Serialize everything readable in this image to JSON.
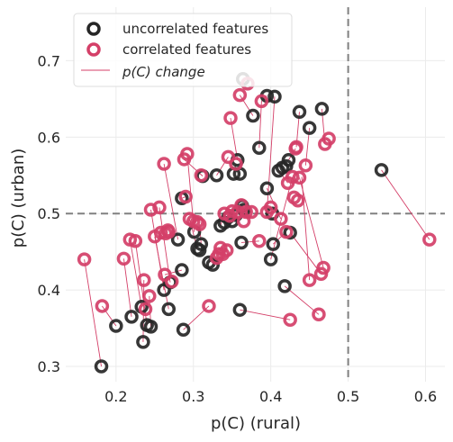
{
  "chart_data": {
    "type": "scatter",
    "xlabel": "p(C) (rural)",
    "ylabel": "p(C) (urban)",
    "xlim": [
      0.135,
      0.625
    ],
    "ylim": [
      0.28,
      0.77
    ],
    "xticks": [
      0.2,
      0.3,
      0.4,
      0.5,
      0.6
    ],
    "yticks": [
      0.3,
      0.4,
      0.5,
      0.6,
      0.7
    ],
    "xtick_labels": [
      "0.2",
      "0.3",
      "0.4",
      "0.5",
      "0.6"
    ],
    "ytick_labels": [
      "0.3",
      "0.4",
      "0.5",
      "0.6",
      "0.7"
    ],
    "grid": true,
    "reference_lines": {
      "x": 0.5,
      "y": 0.5,
      "style": "dashed",
      "color": "#808080"
    },
    "legend": {
      "position": "top-left",
      "entries": [
        {
          "label": "uncorrelated features",
          "marker": "ring",
          "color": "#262626"
        },
        {
          "label": "correlated features",
          "marker": "ring",
          "color": "#d43f68"
        },
        {
          "label": "p(C) change",
          "marker": "line",
          "color": "#d43f68"
        }
      ]
    },
    "colors": {
      "uncorrelated": "#262626",
      "correlated": "#d43f68",
      "change_line": "#d43f68"
    },
    "series": [
      {
        "name": "uncorrelated features",
        "points": [
          [
            0.181,
            0.3
          ],
          [
            0.2,
            0.353
          ],
          [
            0.22,
            0.365
          ],
          [
            0.235,
            0.332
          ],
          [
            0.233,
            0.378
          ],
          [
            0.24,
            0.354
          ],
          [
            0.245,
            0.352
          ],
          [
            0.262,
            0.4
          ],
          [
            0.268,
            0.375
          ],
          [
            0.27,
            0.41
          ],
          [
            0.28,
            0.466
          ],
          [
            0.285,
            0.426
          ],
          [
            0.287,
            0.348
          ],
          [
            0.285,
            0.52
          ],
          [
            0.301,
            0.476
          ],
          [
            0.305,
            0.454
          ],
          [
            0.308,
            0.452
          ],
          [
            0.31,
            0.46
          ],
          [
            0.312,
            0.549
          ],
          [
            0.32,
            0.436
          ],
          [
            0.325,
            0.433
          ],
          [
            0.33,
            0.55
          ],
          [
            0.335,
            0.484
          ],
          [
            0.34,
            0.488
          ],
          [
            0.345,
            0.495
          ],
          [
            0.35,
            0.49
          ],
          [
            0.352,
            0.552
          ],
          [
            0.355,
            0.498
          ],
          [
            0.357,
            0.57
          ],
          [
            0.36,
            0.552
          ],
          [
            0.36,
            0.374
          ],
          [
            0.362,
            0.462
          ],
          [
            0.363,
            0.51
          ],
          [
            0.364,
            0.676
          ],
          [
            0.365,
            0.505
          ],
          [
            0.377,
            0.628
          ],
          [
            0.385,
            0.586
          ],
          [
            0.395,
            0.654
          ],
          [
            0.395,
            0.533
          ],
          [
            0.4,
            0.44
          ],
          [
            0.402,
            0.5
          ],
          [
            0.403,
            0.46
          ],
          [
            0.405,
            0.653
          ],
          [
            0.41,
            0.556
          ],
          [
            0.415,
            0.56
          ],
          [
            0.418,
            0.405
          ],
          [
            0.42,
            0.562
          ],
          [
            0.423,
            0.57
          ],
          [
            0.425,
            0.475
          ],
          [
            0.437,
            0.633
          ],
          [
            0.45,
            0.612
          ],
          [
            0.466,
            0.637
          ],
          [
            0.543,
            0.557
          ]
        ]
      },
      {
        "name": "correlated features",
        "points": [
          [
            0.159,
            0.44
          ],
          [
            0.182,
            0.379
          ],
          [
            0.21,
            0.441
          ],
          [
            0.218,
            0.466
          ],
          [
            0.225,
            0.464
          ],
          [
            0.236,
            0.413
          ],
          [
            0.238,
            0.375
          ],
          [
            0.243,
            0.392
          ],
          [
            0.245,
            0.505
          ],
          [
            0.25,
            0.47
          ],
          [
            0.256,
            0.508
          ],
          [
            0.258,
            0.475
          ],
          [
            0.262,
            0.565
          ],
          [
            0.263,
            0.42
          ],
          [
            0.264,
            0.474
          ],
          [
            0.267,
            0.478
          ],
          [
            0.268,
            0.476
          ],
          [
            0.272,
            0.411
          ],
          [
            0.288,
            0.571
          ],
          [
            0.29,
            0.522
          ],
          [
            0.292,
            0.578
          ],
          [
            0.295,
            0.493
          ],
          [
            0.3,
            0.49
          ],
          [
            0.305,
            0.489
          ],
          [
            0.308,
            0.486
          ],
          [
            0.31,
            0.55
          ],
          [
            0.32,
            0.379
          ],
          [
            0.33,
            0.442
          ],
          [
            0.333,
            0.447
          ],
          [
            0.335,
            0.455
          ],
          [
            0.338,
            0.447
          ],
          [
            0.34,
            0.5
          ],
          [
            0.343,
            0.452
          ],
          [
            0.345,
            0.574
          ],
          [
            0.347,
            0.497
          ],
          [
            0.348,
            0.625
          ],
          [
            0.35,
            0.503
          ],
          [
            0.355,
            0.565
          ],
          [
            0.357,
            0.502
          ],
          [
            0.36,
            0.655
          ],
          [
            0.362,
            0.511
          ],
          [
            0.365,
            0.49
          ],
          [
            0.368,
            0.502
          ],
          [
            0.37,
            0.67
          ],
          [
            0.375,
            0.502
          ],
          [
            0.385,
            0.464
          ],
          [
            0.388,
            0.647
          ],
          [
            0.395,
            0.502
          ],
          [
            0.4,
            0.508
          ],
          [
            0.413,
            0.493
          ],
          [
            0.42,
            0.476
          ],
          [
            0.422,
            0.54
          ],
          [
            0.425,
            0.361
          ],
          [
            0.428,
            0.548
          ],
          [
            0.43,
            0.521
          ],
          [
            0.432,
            0.585
          ],
          [
            0.433,
            0.587
          ],
          [
            0.435,
            0.517
          ],
          [
            0.437,
            0.547
          ],
          [
            0.445,
            0.563
          ],
          [
            0.45,
            0.413
          ],
          [
            0.462,
            0.368
          ],
          [
            0.465,
            0.421
          ],
          [
            0.468,
            0.429
          ],
          [
            0.47,
            0.591
          ],
          [
            0.475,
            0.598
          ],
          [
            0.605,
            0.466
          ]
        ]
      }
    ],
    "change_lines": [
      [
        [
          0.181,
          0.3
        ],
        [
          0.159,
          0.44
        ]
      ],
      [
        [
          0.2,
          0.353
        ],
        [
          0.182,
          0.379
        ]
      ],
      [
        [
          0.22,
          0.365
        ],
        [
          0.21,
          0.441
        ]
      ],
      [
        [
          0.235,
          0.332
        ],
        [
          0.236,
          0.413
        ]
      ],
      [
        [
          0.233,
          0.378
        ],
        [
          0.218,
          0.466
        ]
      ],
      [
        [
          0.24,
          0.354
        ],
        [
          0.225,
          0.464
        ]
      ],
      [
        [
          0.245,
          0.352
        ],
        [
          0.243,
          0.392
        ]
      ],
      [
        [
          0.262,
          0.4
        ],
        [
          0.245,
          0.505
        ]
      ],
      [
        [
          0.268,
          0.375
        ],
        [
          0.25,
          0.47
        ]
      ],
      [
        [
          0.27,
          0.41
        ],
        [
          0.256,
          0.508
        ]
      ],
      [
        [
          0.28,
          0.466
        ],
        [
          0.262,
          0.565
        ]
      ],
      [
        [
          0.285,
          0.426
        ],
        [
          0.263,
          0.42
        ]
      ],
      [
        [
          0.287,
          0.348
        ],
        [
          0.32,
          0.379
        ]
      ],
      [
        [
          0.285,
          0.52
        ],
        [
          0.29,
          0.522
        ]
      ],
      [
        [
          0.301,
          0.476
        ],
        [
          0.292,
          0.578
        ]
      ],
      [
        [
          0.305,
          0.454
        ],
        [
          0.295,
          0.493
        ]
      ],
      [
        [
          0.31,
          0.46
        ],
        [
          0.308,
          0.486
        ]
      ],
      [
        [
          0.312,
          0.549
        ],
        [
          0.288,
          0.571
        ]
      ],
      [
        [
          0.32,
          0.436
        ],
        [
          0.33,
          0.442
        ]
      ],
      [
        [
          0.325,
          0.433
        ],
        [
          0.338,
          0.447
        ]
      ],
      [
        [
          0.33,
          0.55
        ],
        [
          0.345,
          0.574
        ]
      ],
      [
        [
          0.335,
          0.484
        ],
        [
          0.34,
          0.5
        ]
      ],
      [
        [
          0.34,
          0.488
        ],
        [
          0.347,
          0.497
        ]
      ],
      [
        [
          0.352,
          0.552
        ],
        [
          0.355,
          0.565
        ]
      ],
      [
        [
          0.357,
          0.57
        ],
        [
          0.348,
          0.625
        ]
      ],
      [
        [
          0.36,
          0.374
        ],
        [
          0.425,
          0.361
        ]
      ],
      [
        [
          0.362,
          0.462
        ],
        [
          0.385,
          0.464
        ]
      ],
      [
        [
          0.364,
          0.676
        ],
        [
          0.37,
          0.67
        ]
      ],
      [
        [
          0.363,
          0.51
        ],
        [
          0.368,
          0.502
        ]
      ],
      [
        [
          0.365,
          0.505
        ],
        [
          0.375,
          0.502
        ]
      ],
      [
        [
          0.377,
          0.628
        ],
        [
          0.36,
          0.655
        ]
      ],
      [
        [
          0.385,
          0.586
        ],
        [
          0.388,
          0.647
        ]
      ],
      [
        [
          0.395,
          0.654
        ],
        [
          0.388,
          0.647
        ]
      ],
      [
        [
          0.395,
          0.533
        ],
        [
          0.413,
          0.493
        ]
      ],
      [
        [
          0.4,
          0.44
        ],
        [
          0.428,
          0.548
        ]
      ],
      [
        [
          0.403,
          0.46
        ],
        [
          0.42,
          0.476
        ]
      ],
      [
        [
          0.405,
          0.653
        ],
        [
          0.395,
          0.502
        ]
      ],
      [
        [
          0.41,
          0.556
        ],
        [
          0.422,
          0.54
        ]
      ],
      [
        [
          0.418,
          0.405
        ],
        [
          0.462,
          0.368
        ]
      ],
      [
        [
          0.423,
          0.57
        ],
        [
          0.432,
          0.585
        ]
      ],
      [
        [
          0.425,
          0.475
        ],
        [
          0.465,
          0.421
        ]
      ],
      [
        [
          0.437,
          0.633
        ],
        [
          0.433,
          0.587
        ]
      ],
      [
        [
          0.45,
          0.612
        ],
        [
          0.445,
          0.563
        ]
      ],
      [
        [
          0.466,
          0.637
        ],
        [
          0.47,
          0.591
        ]
      ],
      [
        [
          0.543,
          0.557
        ],
        [
          0.605,
          0.466
        ]
      ],
      [
        [
          0.44,
          0.548
        ],
        [
          0.45,
          0.413
        ]
      ],
      [
        [
          0.437,
          0.547
        ],
        [
          0.468,
          0.429
        ]
      ]
    ]
  }
}
